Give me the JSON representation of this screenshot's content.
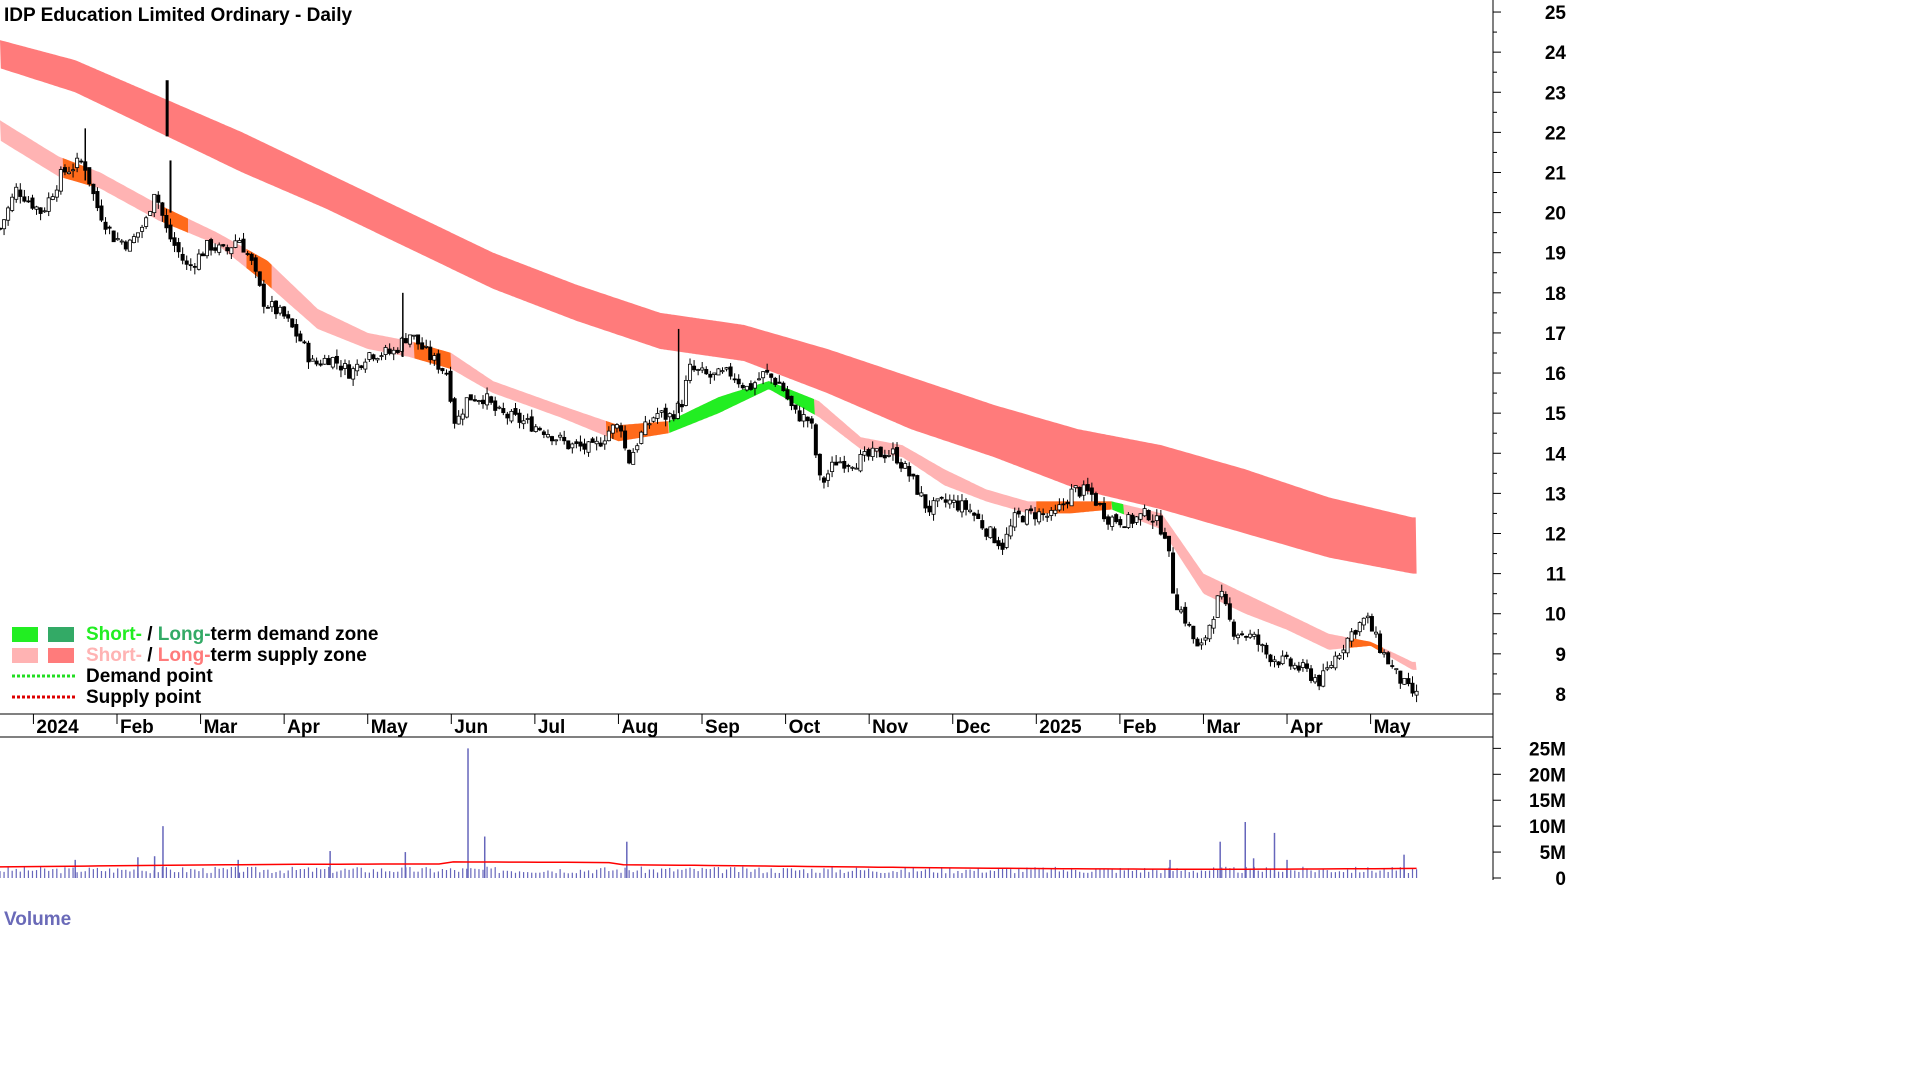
{
  "chart_data": {
    "type": "candlestick",
    "title": "IDP Education Limited Ordinary - Daily",
    "price_axis": {
      "ticks": [
        "8",
        "9",
        "10",
        "11",
        "12",
        "13",
        "14",
        "15",
        "16",
        "17",
        "18",
        "19",
        "20",
        "21",
        "22",
        "23",
        "24",
        "25"
      ],
      "ylim": [
        7.5,
        25.3
      ]
    },
    "x_axis": {
      "labels": [
        "2024",
        "Feb",
        "Mar",
        "Apr",
        "May",
        "Jun",
        "Jul",
        "Aug",
        "Sep",
        "Oct",
        "Nov",
        "Dec",
        "2025",
        "Feb",
        "Mar",
        "Apr",
        "May"
      ],
      "label_month_index": [
        0,
        1,
        2,
        3,
        4,
        5,
        6,
        7,
        8,
        9,
        10,
        11,
        12,
        13,
        14,
        15,
        16
      ],
      "xlim_months": [
        -0.4,
        16.95
      ]
    },
    "price_anchors": [
      {
        "m": -0.4,
        "p": 19.6
      },
      {
        "m": -0.2,
        "p": 20.6
      },
      {
        "m": 0.1,
        "p": 20.0
      },
      {
        "m": 0.35,
        "p": 21.0
      },
      {
        "m": 0.6,
        "p": 21.3
      },
      {
        "m": 0.75,
        "p": 20.2
      },
      {
        "m": 0.95,
        "p": 19.4
      },
      {
        "m": 1.15,
        "p": 19.2
      },
      {
        "m": 1.35,
        "p": 19.8
      },
      {
        "m": 1.45,
        "p": 20.6
      },
      {
        "m": 1.6,
        "p": 19.5
      },
      {
        "m": 1.85,
        "p": 18.6
      },
      {
        "m": 2.1,
        "p": 19.2
      },
      {
        "m": 2.3,
        "p": 19.0
      },
      {
        "m": 2.45,
        "p": 19.4
      },
      {
        "m": 2.6,
        "p": 18.8
      },
      {
        "m": 2.75,
        "p": 17.8
      },
      {
        "m": 3.0,
        "p": 17.4
      },
      {
        "m": 3.2,
        "p": 16.8
      },
      {
        "m": 3.35,
        "p": 16.2
      },
      {
        "m": 3.55,
        "p": 16.4
      },
      {
        "m": 3.8,
        "p": 16.0
      },
      {
        "m": 4.0,
        "p": 16.5
      },
      {
        "m": 4.3,
        "p": 16.5
      },
      {
        "m": 4.5,
        "p": 17.0
      },
      {
        "m": 4.7,
        "p": 16.5
      },
      {
        "m": 4.95,
        "p": 16.0
      },
      {
        "m": 5.05,
        "p": 14.7
      },
      {
        "m": 5.2,
        "p": 15.4
      },
      {
        "m": 5.4,
        "p": 15.4
      },
      {
        "m": 5.55,
        "p": 15.0
      },
      {
        "m": 5.85,
        "p": 14.8
      },
      {
        "m": 6.1,
        "p": 14.6
      },
      {
        "m": 6.4,
        "p": 14.2
      },
      {
        "m": 6.7,
        "p": 14.1
      },
      {
        "m": 6.9,
        "p": 14.6
      },
      {
        "m": 7.05,
        "p": 14.7
      },
      {
        "m": 7.1,
        "p": 13.7
      },
      {
        "m": 7.25,
        "p": 14.4
      },
      {
        "m": 7.45,
        "p": 15.0
      },
      {
        "m": 7.6,
        "p": 14.9
      },
      {
        "m": 7.75,
        "p": 15.2
      },
      {
        "m": 7.85,
        "p": 16.1
      },
      {
        "m": 8.1,
        "p": 15.9
      },
      {
        "m": 8.35,
        "p": 16.0
      },
      {
        "m": 8.55,
        "p": 15.6
      },
      {
        "m": 8.75,
        "p": 16.0
      },
      {
        "m": 8.95,
        "p": 15.7
      },
      {
        "m": 9.1,
        "p": 15.0
      },
      {
        "m": 9.3,
        "p": 14.8
      },
      {
        "m": 9.42,
        "p": 13.2
      },
      {
        "m": 9.6,
        "p": 13.8
      },
      {
        "m": 9.85,
        "p": 13.8
      },
      {
        "m": 10.1,
        "p": 14.0
      },
      {
        "m": 10.3,
        "p": 14.0
      },
      {
        "m": 10.5,
        "p": 13.4
      },
      {
        "m": 10.7,
        "p": 12.6
      },
      {
        "m": 10.95,
        "p": 12.8
      },
      {
        "m": 11.2,
        "p": 12.6
      },
      {
        "m": 11.4,
        "p": 12.1
      },
      {
        "m": 11.6,
        "p": 11.7
      },
      {
        "m": 11.75,
        "p": 12.4
      },
      {
        "m": 12.0,
        "p": 12.5
      },
      {
        "m": 12.2,
        "p": 12.4
      },
      {
        "m": 12.45,
        "p": 13.1
      },
      {
        "m": 12.65,
        "p": 13.0
      },
      {
        "m": 12.85,
        "p": 12.4
      },
      {
        "m": 13.1,
        "p": 12.3
      },
      {
        "m": 13.35,
        "p": 12.5
      },
      {
        "m": 13.55,
        "p": 12.0
      },
      {
        "m": 13.65,
        "p": 10.4
      },
      {
        "m": 13.8,
        "p": 9.8
      },
      {
        "m": 13.95,
        "p": 9.0
      },
      {
        "m": 14.05,
        "p": 9.6
      },
      {
        "m": 14.2,
        "p": 10.5
      },
      {
        "m": 14.35,
        "p": 9.6
      },
      {
        "m": 14.6,
        "p": 9.4
      },
      {
        "m": 14.75,
        "p": 9.0
      },
      {
        "m": 14.95,
        "p": 8.8
      },
      {
        "m": 15.2,
        "p": 8.6
      },
      {
        "m": 15.4,
        "p": 8.3
      },
      {
        "m": 15.6,
        "p": 9.0
      },
      {
        "m": 15.8,
        "p": 9.6
      },
      {
        "m": 15.95,
        "p": 9.9
      },
      {
        "m": 16.1,
        "p": 9.2
      },
      {
        "m": 16.3,
        "p": 8.5
      },
      {
        "m": 16.45,
        "p": 8.1
      },
      {
        "m": 16.55,
        "p": 7.95
      }
    ],
    "long_term_zone": {
      "upper": [
        {
          "m": -0.4,
          "p": 24.3
        },
        {
          "m": 0.5,
          "p": 23.8
        },
        {
          "m": 1.5,
          "p": 22.9
        },
        {
          "m": 2.5,
          "p": 22.0
        },
        {
          "m": 3.5,
          "p": 21.0
        },
        {
          "m": 4.5,
          "p": 20.0
        },
        {
          "m": 5.5,
          "p": 19.0
        },
        {
          "m": 6.5,
          "p": 18.2
        },
        {
          "m": 7.5,
          "p": 17.5
        },
        {
          "m": 8.5,
          "p": 17.2
        },
        {
          "m": 9.5,
          "p": 16.6
        },
        {
          "m": 10.5,
          "p": 15.9
        },
        {
          "m": 11.5,
          "p": 15.2
        },
        {
          "m": 12.5,
          "p": 14.6
        },
        {
          "m": 13.5,
          "p": 14.2
        },
        {
          "m": 14.5,
          "p": 13.6
        },
        {
          "m": 15.5,
          "p": 12.9
        },
        {
          "m": 16.5,
          "p": 12.4
        }
      ],
      "lower": [
        {
          "m": -0.4,
          "p": 23.6
        },
        {
          "m": 0.5,
          "p": 23.0
        },
        {
          "m": 1.5,
          "p": 22.0
        },
        {
          "m": 2.5,
          "p": 21.0
        },
        {
          "m": 3.5,
          "p": 20.1
        },
        {
          "m": 4.5,
          "p": 19.1
        },
        {
          "m": 5.5,
          "p": 18.1
        },
        {
          "m": 6.5,
          "p": 17.3
        },
        {
          "m": 7.5,
          "p": 16.6
        },
        {
          "m": 8.5,
          "p": 16.3
        },
        {
          "m": 9.5,
          "p": 15.5
        },
        {
          "m": 10.5,
          "p": 14.6
        },
        {
          "m": 11.5,
          "p": 13.9
        },
        {
          "m": 12.5,
          "p": 13.1
        },
        {
          "m": 13.5,
          "p": 12.6
        },
        {
          "m": 14.5,
          "p": 12.0
        },
        {
          "m": 15.5,
          "p": 11.4
        },
        {
          "m": 16.5,
          "p": 11.0
        }
      ],
      "color": "#ff7b7b"
    },
    "short_term_zone": {
      "upper": [
        {
          "m": -0.4,
          "p": 22.3
        },
        {
          "m": 0.3,
          "p": 21.4
        },
        {
          "m": 0.8,
          "p": 21.0
        },
        {
          "m": 1.5,
          "p": 20.2
        },
        {
          "m": 2.2,
          "p": 19.5
        },
        {
          "m": 2.8,
          "p": 18.8
        },
        {
          "m": 3.4,
          "p": 17.6
        },
        {
          "m": 4.0,
          "p": 17.0
        },
        {
          "m": 4.5,
          "p": 16.8
        },
        {
          "m": 5.0,
          "p": 16.5
        },
        {
          "m": 5.5,
          "p": 15.8
        },
        {
          "m": 6.3,
          "p": 15.2
        },
        {
          "m": 7.0,
          "p": 14.7
        },
        {
          "m": 7.6,
          "p": 14.8
        },
        {
          "m": 8.2,
          "p": 15.4
        },
        {
          "m": 8.8,
          "p": 15.8
        },
        {
          "m": 9.4,
          "p": 15.3
        },
        {
          "m": 9.9,
          "p": 14.4
        },
        {
          "m": 10.4,
          "p": 14.2
        },
        {
          "m": 10.9,
          "p": 13.6
        },
        {
          "m": 11.4,
          "p": 13.1
        },
        {
          "m": 11.9,
          "p": 12.8
        },
        {
          "m": 12.4,
          "p": 12.8
        },
        {
          "m": 12.9,
          "p": 12.8
        },
        {
          "m": 13.5,
          "p": 12.5
        },
        {
          "m": 14.0,
          "p": 11.0
        },
        {
          "m": 14.5,
          "p": 10.5
        },
        {
          "m": 15.0,
          "p": 10.0
        },
        {
          "m": 15.5,
          "p": 9.5
        },
        {
          "m": 16.0,
          "p": 9.3
        },
        {
          "m": 16.5,
          "p": 8.8
        }
      ],
      "lower": [
        {
          "m": -0.4,
          "p": 21.8
        },
        {
          "m": 0.3,
          "p": 20.9
        },
        {
          "m": 0.8,
          "p": 20.6
        },
        {
          "m": 1.5,
          "p": 19.8
        },
        {
          "m": 2.2,
          "p": 19.2
        },
        {
          "m": 2.8,
          "p": 18.2
        },
        {
          "m": 3.4,
          "p": 17.1
        },
        {
          "m": 4.0,
          "p": 16.6
        },
        {
          "m": 4.5,
          "p": 16.4
        },
        {
          "m": 5.0,
          "p": 16.1
        },
        {
          "m": 5.5,
          "p": 15.5
        },
        {
          "m": 6.3,
          "p": 14.9
        },
        {
          "m": 7.0,
          "p": 14.3
        },
        {
          "m": 7.6,
          "p": 14.5
        },
        {
          "m": 8.2,
          "p": 15.0
        },
        {
          "m": 8.8,
          "p": 15.6
        },
        {
          "m": 9.4,
          "p": 14.9
        },
        {
          "m": 9.9,
          "p": 14.1
        },
        {
          "m": 10.4,
          "p": 13.9
        },
        {
          "m": 10.9,
          "p": 13.2
        },
        {
          "m": 11.4,
          "p": 12.8
        },
        {
          "m": 11.9,
          "p": 12.5
        },
        {
          "m": 12.4,
          "p": 12.5
        },
        {
          "m": 12.9,
          "p": 12.6
        },
        {
          "m": 13.5,
          "p": 12.1
        },
        {
          "m": 14.0,
          "p": 10.5
        },
        {
          "m": 14.5,
          "p": 10.0
        },
        {
          "m": 15.0,
          "p": 9.6
        },
        {
          "m": 15.5,
          "p": 9.1
        },
        {
          "m": 16.0,
          "p": 9.2
        },
        {
          "m": 16.5,
          "p": 8.6
        }
      ],
      "color": "#ffb3b3",
      "cross_color": "#ff6a1a",
      "demand_color": "#22ee22",
      "demand_range_months": [
        [
          7.6,
          9.35
        ],
        [
          12.9,
          13.05
        ]
      ],
      "cross_range_months": [
        [
          0.35,
          0.7
        ],
        [
          1.55,
          1.85
        ],
        [
          2.55,
          2.85
        ],
        [
          4.55,
          5.0
        ],
        [
          6.85,
          7.6
        ],
        [
          12.0,
          12.6
        ],
        [
          12.6,
          12.9
        ],
        [
          15.75,
          16.15
        ]
      ]
    },
    "volume_panel": {
      "label": "Volume",
      "ticks": [
        "0",
        "5M",
        "10M",
        "15M",
        "20M",
        "25M"
      ],
      "ylim_millions": [
        0,
        27
      ],
      "average_line_color": "#ff0000",
      "bar_color": "#6666bb",
      "spikes": [
        {
          "m": 0.5,
          "v": 3.5
        },
        {
          "m": 1.25,
          "v": 4.0
        },
        {
          "m": 1.55,
          "v": 10.0
        },
        {
          "m": 1.45,
          "v": 4.2
        },
        {
          "m": 2.45,
          "v": 3.5
        },
        {
          "m": 3.55,
          "v": 5.2
        },
        {
          "m": 4.45,
          "v": 5.0
        },
        {
          "m": 5.2,
          "v": 25.0
        },
        {
          "m": 5.4,
          "v": 8.0
        },
        {
          "m": 7.1,
          "v": 7.0
        },
        {
          "m": 13.6,
          "v": 3.5
        },
        {
          "m": 14.2,
          "v": 7.0
        },
        {
          "m": 14.5,
          "v": 10.8
        },
        {
          "m": 14.6,
          "v": 3.8
        },
        {
          "m": 14.85,
          "v": 8.7
        },
        {
          "m": 15.0,
          "v": 3.5
        },
        {
          "m": 16.4,
          "v": 4.5
        }
      ]
    },
    "legend": [
      {
        "label_a": "Short-",
        "sep": " / ",
        "label_b": "Long-",
        "rest": "term demand zone",
        "color_a": "#22ee22",
        "color_b": "#33aa66"
      },
      {
        "label_a": "Short-",
        "sep": " / ",
        "label_b": "Long-",
        "rest": "term supply zone",
        "color_a": "#ffb3b3",
        "color_b": "#ff7b7b"
      },
      {
        "label": "Demand point",
        "color": "#22dd22"
      },
      {
        "label": "Supply point",
        "color": "#dd0000"
      }
    ],
    "grid": false
  }
}
